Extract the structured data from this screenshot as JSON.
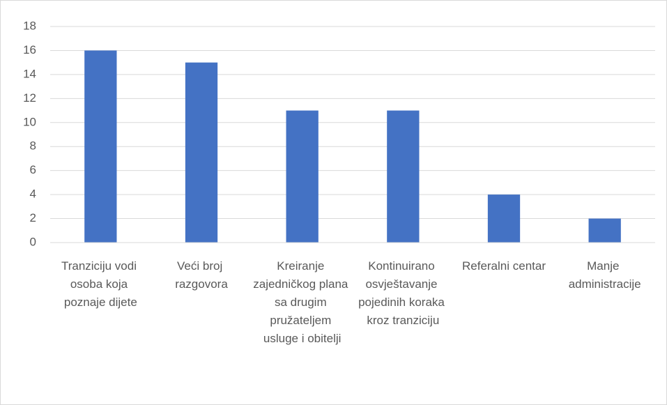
{
  "chart_data": {
    "type": "bar",
    "categories": [
      "Tranziciju vodi osoba koja poznaje dijete",
      "Veći broj razgovora",
      "Kreiranje zajedničkog plana sa drugim pružateljem usluge i obitelji",
      "Kontinuirano osvještavanje pojedinih koraka kroz tranziciju",
      "Referalni centar",
      "Manje administracije"
    ],
    "values": [
      16,
      15,
      11,
      11,
      4,
      2
    ],
    "color": "#4472c4",
    "ylim": [
      0,
      18
    ],
    "yticks": [
      0,
      2,
      4,
      6,
      8,
      10,
      12,
      14,
      16,
      18
    ],
    "grid": true
  }
}
